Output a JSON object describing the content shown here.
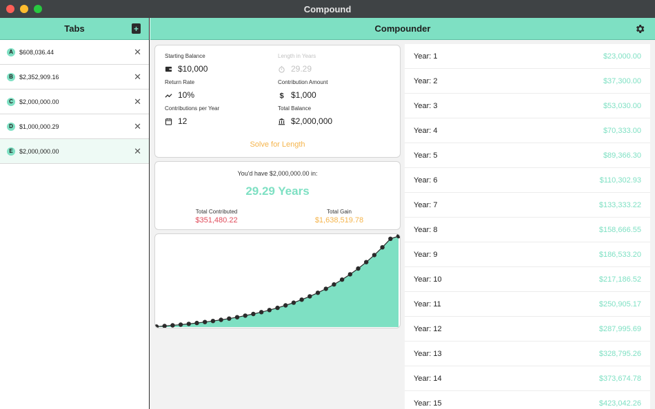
{
  "window": {
    "title": "Compound"
  },
  "sidebar": {
    "title": "Tabs",
    "new_tab_icon": "plus-document-icon",
    "tabs": [
      {
        "badge": "A",
        "value": "$608,036.44"
      },
      {
        "badge": "B",
        "value": "$2,352,909.16"
      },
      {
        "badge": "C",
        "value": "$2,000,000.00"
      },
      {
        "badge": "D",
        "value": "$1,000,000.29"
      },
      {
        "badge": "E",
        "value": "$2,000,000.00"
      }
    ],
    "selected_index": 4,
    "close_glyph": "✕"
  },
  "main": {
    "title": "Compounder",
    "settings_icon": "gear-icon"
  },
  "inputs": {
    "starting_balance": {
      "label": "Starting Balance",
      "value": "$10,000",
      "icon": "wallet-icon"
    },
    "length_in_years": {
      "label": "Length in Years",
      "value": "29.29",
      "icon": "stopwatch-icon"
    },
    "return_rate": {
      "label": "Return Rate",
      "value": "10%",
      "icon": "trend-up-icon"
    },
    "contribution_amount": {
      "label": "Contribution Amount",
      "value": "$1,000",
      "icon": "dollar-icon"
    },
    "contributions_per_year": {
      "label": "Contributions per Year",
      "value": "12",
      "icon": "calendar-icon"
    },
    "total_balance": {
      "label": "Total Balance",
      "value": "$2,000,000",
      "icon": "bank-icon"
    },
    "solve_label": "Solve for Length"
  },
  "result": {
    "intro": "You'd have $2,000,000.00 in:",
    "years": "29.29 Years",
    "total_contributed_label": "Total Contributed",
    "total_contributed": "$351,480.22",
    "total_gain_label": "Total Gain",
    "total_gain": "$1,638,519.78"
  },
  "chart_data": {
    "type": "area",
    "x": [
      0,
      1,
      2,
      3,
      4,
      5,
      6,
      7,
      8,
      9,
      10,
      11,
      12,
      13,
      14,
      15,
      16,
      17,
      18,
      19,
      20,
      21,
      22,
      23,
      24,
      25,
      26,
      27,
      28,
      29,
      30
    ],
    "values": [
      10000,
      23000,
      37300,
      53030,
      70333,
      89366.3,
      110302.93,
      133333.22,
      158666.55,
      186533.2,
      217186.52,
      250905.17,
      287995.69,
      328795.26,
      373674.78,
      423042.26,
      477346.48,
      537081.13,
      602789.24,
      675068.17,
      754574.98,
      842032.48,
      938235.73,
      1044059.3,
      1160465.23,
      1288511.76,
      1429362.93,
      1584299.23,
      1754729.15,
      1942202.06,
      2000000
    ],
    "ylim": [
      0,
      2000000
    ],
    "fill_color": "#7ee0c3",
    "line_color": "#2b2b2b"
  },
  "years": [
    {
      "label": "Year: 1",
      "value": "$23,000.00"
    },
    {
      "label": "Year: 2",
      "value": "$37,300.00"
    },
    {
      "label": "Year: 3",
      "value": "$53,030.00"
    },
    {
      "label": "Year: 4",
      "value": "$70,333.00"
    },
    {
      "label": "Year: 5",
      "value": "$89,366.30"
    },
    {
      "label": "Year: 6",
      "value": "$110,302.93"
    },
    {
      "label": "Year: 7",
      "value": "$133,333.22"
    },
    {
      "label": "Year: 8",
      "value": "$158,666.55"
    },
    {
      "label": "Year: 9",
      "value": "$186,533.20"
    },
    {
      "label": "Year: 10",
      "value": "$217,186.52"
    },
    {
      "label": "Year: 11",
      "value": "$250,905.17"
    },
    {
      "label": "Year: 12",
      "value": "$287,995.69"
    },
    {
      "label": "Year: 13",
      "value": "$328,795.26"
    },
    {
      "label": "Year: 14",
      "value": "$373,674.78"
    },
    {
      "label": "Year: 15",
      "value": "$423,042.26"
    }
  ],
  "colors": {
    "accent": "#7ee0c3",
    "red": "#e04b5a",
    "orange": "#f5b44b",
    "titlebar": "#3f4345"
  }
}
